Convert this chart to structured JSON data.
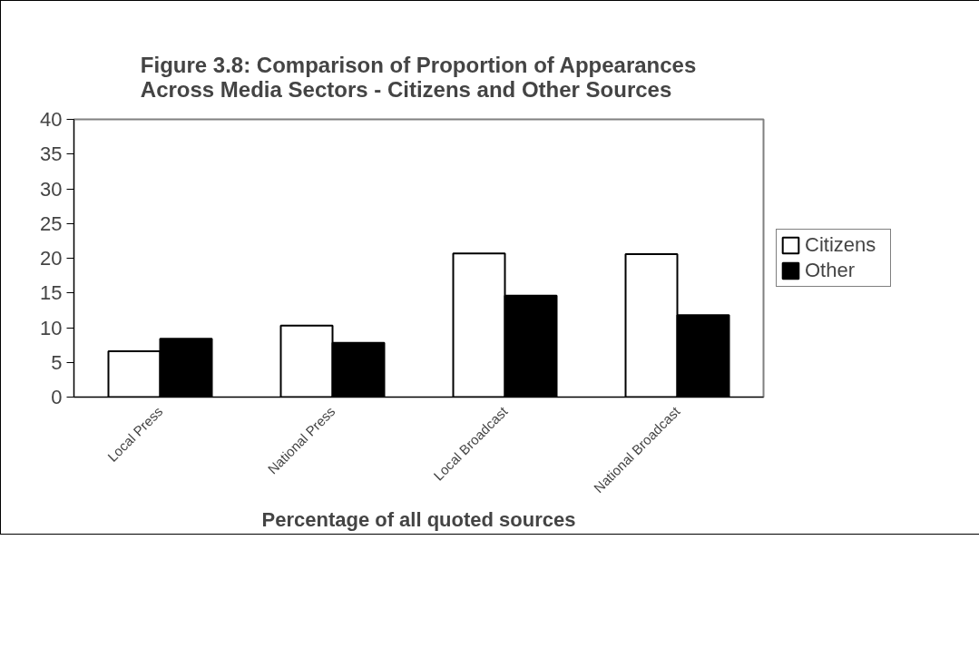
{
  "chart_data": {
    "type": "bar",
    "title": "Figure 3.8: Comparison of Proportion of Appearances\nAcross Media Sectors - Citizens and Other Sources",
    "xlabel": "Percentage of all quoted sources",
    "categories": [
      "Local Press",
      "National Press",
      "Local Broadcast",
      "National Broadcast"
    ],
    "series": [
      {
        "name": "Citizens",
        "color": "#ffffff",
        "values": [
          6.6,
          10.3,
          20.7,
          20.6
        ]
      },
      {
        "name": "Other",
        "color": "#000000",
        "values": [
          8.4,
          7.8,
          14.6,
          11.8
        ]
      }
    ],
    "ylim": [
      0,
      40
    ],
    "yticks": [
      0,
      5,
      10,
      15,
      20,
      25,
      30,
      35,
      40
    ],
    "grid": false,
    "legend": "right"
  }
}
